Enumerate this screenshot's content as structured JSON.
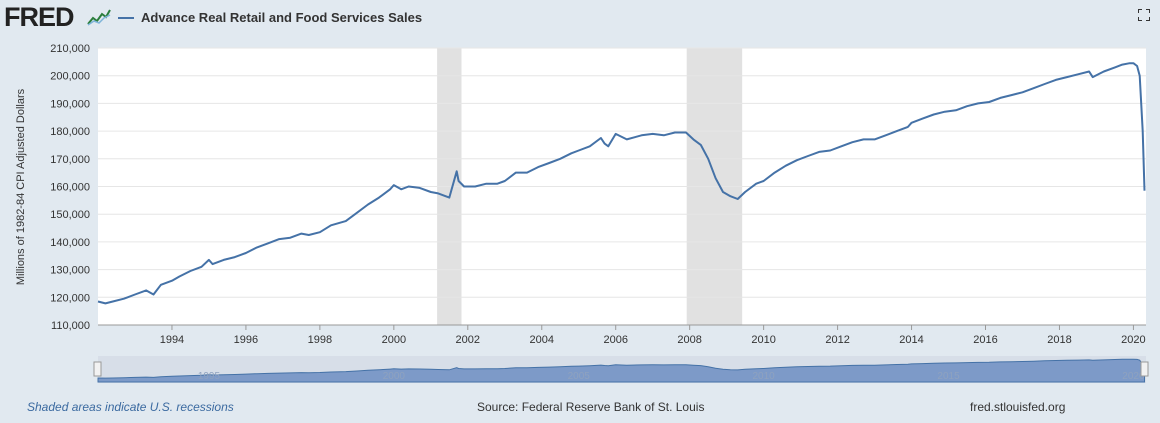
{
  "header": {
    "logo": "FRED",
    "legend_label": "Advance Real Retail and Food Services Sales"
  },
  "footer": {
    "recession_note": "Shaded areas indicate U.S. recessions",
    "source": "Source: Federal Reserve Bank of St. Louis",
    "site": "fred.stlouisfed.org"
  },
  "navigator": {
    "tick_labels": [
      "1995",
      "2000",
      "2005",
      "2010",
      "2015",
      "2020"
    ]
  },
  "colors": {
    "line": "#4572a7",
    "recession": "#e1e1e1",
    "background": "#e1e9f0",
    "navigator_fill": "#7d9ac8"
  },
  "icons": [
    "fred-logo-graph-icon",
    "fullscreen-icon",
    "navigator-handle-icon"
  ],
  "chart_data": {
    "type": "line",
    "ylabel": "Millions of 1982-84 CPI Adjusted Dollars",
    "xlabel": "",
    "ylim": [
      110000,
      210000
    ],
    "yticks": [
      110000,
      120000,
      130000,
      140000,
      150000,
      160000,
      170000,
      180000,
      190000,
      200000,
      210000
    ],
    "ytick_labels": [
      "110,000",
      "120,000",
      "130,000",
      "140,000",
      "150,000",
      "160,000",
      "170,000",
      "180,000",
      "190,000",
      "200,000",
      "210,000"
    ],
    "xlim": [
      1992.0,
      2020.34
    ],
    "xticks": [
      1994,
      1996,
      1998,
      2000,
      2002,
      2004,
      2006,
      2008,
      2010,
      2012,
      2014,
      2016,
      2018,
      2020
    ],
    "xtick_labels": [
      "1994",
      "1996",
      "1998",
      "2000",
      "2002",
      "2004",
      "2006",
      "2008",
      "2010",
      "2012",
      "2014",
      "2016",
      "2018",
      "2020"
    ],
    "grid": "horizontal",
    "recessions": [
      [
        2001.17,
        2001.83
      ],
      [
        2007.92,
        2009.42
      ]
    ],
    "series": [
      {
        "name": "Advance Real Retail and Food Services Sales",
        "x": [
          1992.0,
          1992.2,
          1992.4,
          1992.7,
          1993.0,
          1993.3,
          1993.5,
          1993.7,
          1994.0,
          1994.2,
          1994.5,
          1994.8,
          1995.0,
          1995.1,
          1995.4,
          1995.7,
          1996.0,
          1996.3,
          1996.6,
          1996.9,
          1997.2,
          1997.5,
          1997.7,
          1998.0,
          1998.3,
          1998.7,
          1999.0,
          1999.3,
          1999.6,
          1999.9,
          2000.0,
          2000.2,
          2000.4,
          2000.7,
          2001.0,
          2001.2,
          2001.5,
          2001.7,
          2001.75,
          2001.9,
          2002.2,
          2002.5,
          2002.8,
          2003.0,
          2003.3,
          2003.6,
          2003.9,
          2004.2,
          2004.5,
          2004.8,
          2005.0,
          2005.3,
          2005.6,
          2005.7,
          2005.8,
          2006.0,
          2006.3,
          2006.7,
          2007.0,
          2007.3,
          2007.6,
          2007.9,
          2008.1,
          2008.3,
          2008.5,
          2008.7,
          2008.9,
          2009.1,
          2009.3,
          2009.5,
          2009.8,
          2010.0,
          2010.3,
          2010.6,
          2010.9,
          2011.2,
          2011.5,
          2011.8,
          2012.1,
          2012.4,
          2012.7,
          2013.0,
          2013.3,
          2013.6,
          2013.9,
          2014.0,
          2014.3,
          2014.6,
          2014.9,
          2015.2,
          2015.5,
          2015.8,
          2016.1,
          2016.4,
          2016.7,
          2017.0,
          2017.3,
          2017.6,
          2017.9,
          2018.2,
          2018.5,
          2018.8,
          2018.9,
          2019.2,
          2019.5,
          2019.7,
          2019.9,
          2020.0,
          2020.1,
          2020.17,
          2020.25,
          2020.3
        ],
        "values": [
          118500,
          117800,
          118500,
          119500,
          121000,
          122500,
          121000,
          124500,
          126000,
          127500,
          129500,
          131000,
          133500,
          132000,
          133500,
          134500,
          136000,
          138000,
          139500,
          141000,
          141500,
          143000,
          142500,
          143500,
          146000,
          147500,
          150500,
          153500,
          156000,
          159000,
          160500,
          159000,
          160000,
          159500,
          158000,
          157500,
          156000,
          165500,
          162000,
          160000,
          160000,
          161000,
          161000,
          162000,
          165000,
          165000,
          167000,
          168500,
          170000,
          172000,
          173000,
          174500,
          177500,
          175500,
          174500,
          179000,
          177000,
          178500,
          179000,
          178500,
          179500,
          179500,
          177000,
          175000,
          170000,
          163000,
          158000,
          156500,
          155500,
          158000,
          161000,
          162000,
          165000,
          167500,
          169500,
          171000,
          172500,
          173000,
          174500,
          176000,
          177000,
          177000,
          178500,
          180000,
          181500,
          183000,
          184500,
          186000,
          187000,
          187500,
          189000,
          190000,
          190500,
          192000,
          193000,
          194000,
          195500,
          197000,
          198500,
          199500,
          200500,
          201500,
          199500,
          201500,
          203000,
          204000,
          204500,
          204500,
          203500,
          200000,
          180000,
          158500
        ]
      }
    ]
  }
}
